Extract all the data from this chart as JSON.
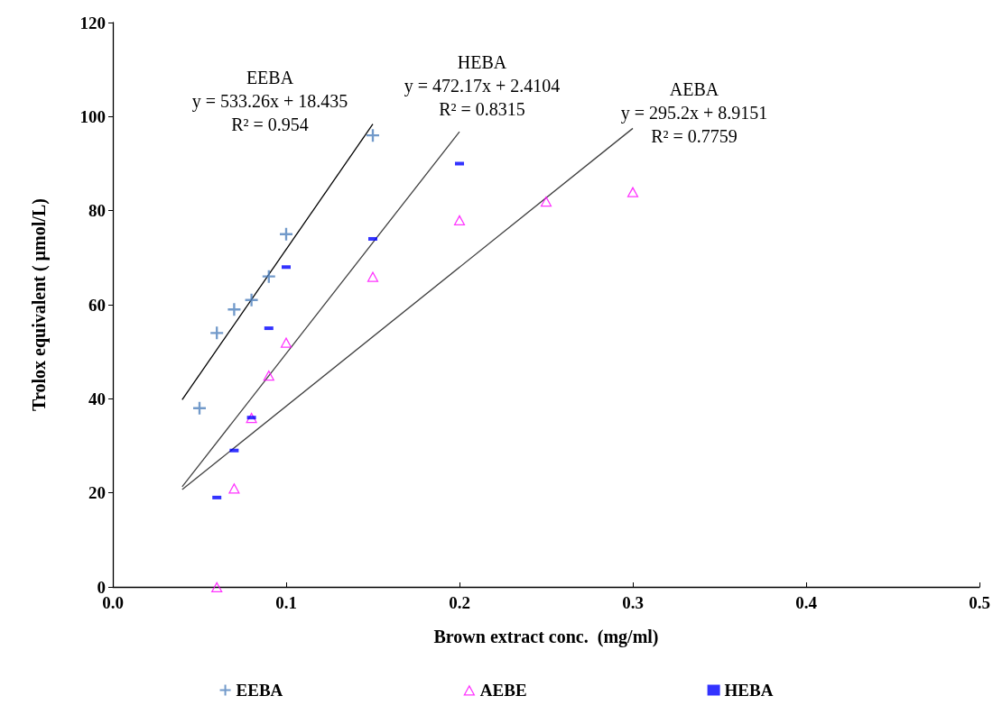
{
  "chart_data": {
    "type": "scatter",
    "xlabel": "Brown extract conc.  (mg/ml)",
    "ylabel": "Trolox equivalent ( µmol/L)",
    "xlim": [
      0,
      0.5
    ],
    "xticks": [
      {
        "value": 0,
        "label": "0.0"
      },
      0.1,
      0.2,
      0.3,
      0.4,
      0.5
    ],
    "ylim": [
      0,
      120
    ],
    "yticks": [
      0,
      20,
      40,
      60,
      80,
      100,
      120
    ],
    "grid": false,
    "legend": "bottom",
    "series": [
      {
        "name": "EEBA",
        "color": "#4f81bd",
        "marker": "cross",
        "x": [
          0.05,
          0.06,
          0.07,
          0.08,
          0.09,
          0.1,
          0.15
        ],
        "values": [
          38,
          54,
          59,
          61,
          66,
          75,
          96
        ]
      },
      {
        "name": "AEBE",
        "color": "#ff00ff",
        "marker": "triangle",
        "x": [
          0.06,
          0.07,
          0.08,
          0.09,
          0.1,
          0.15,
          0.2,
          0.25,
          0.3
        ],
        "values": [
          0,
          21,
          36,
          45,
          52,
          66,
          78,
          82,
          84
        ]
      },
      {
        "name": "HEBA",
        "color": "#0000ff",
        "marker": "square",
        "x": [
          0.06,
          0.07,
          0.08,
          0.09,
          0.1,
          0.15,
          0.2
        ],
        "values": [
          19,
          29,
          36,
          55,
          68,
          74,
          90
        ]
      },
      {
        "type": "line",
        "color": "#000000",
        "marker": "none",
        "x": [
          0.04,
          0.15
        ],
        "values": [
          39.8,
          98.4
        ]
      },
      {
        "type": "line",
        "color": "#404040",
        "marker": "none",
        "x": [
          0.04,
          0.2
        ],
        "values": [
          21.3,
          96.8
        ]
      },
      {
        "type": "line",
        "color": "#404040",
        "marker": "none",
        "x": [
          0.04,
          0.3
        ],
        "values": [
          20.7,
          97.5
        ]
      }
    ],
    "annotations": [
      "EEBA\ny = 533.26x + 18.435\nR² = 0.954",
      "HEBA\ny = 472.17x + 2.4104\nR² = 0.8315",
      "AEBA\ny = 295.2x + 8.9151\nR² = 0.7759"
    ]
  }
}
